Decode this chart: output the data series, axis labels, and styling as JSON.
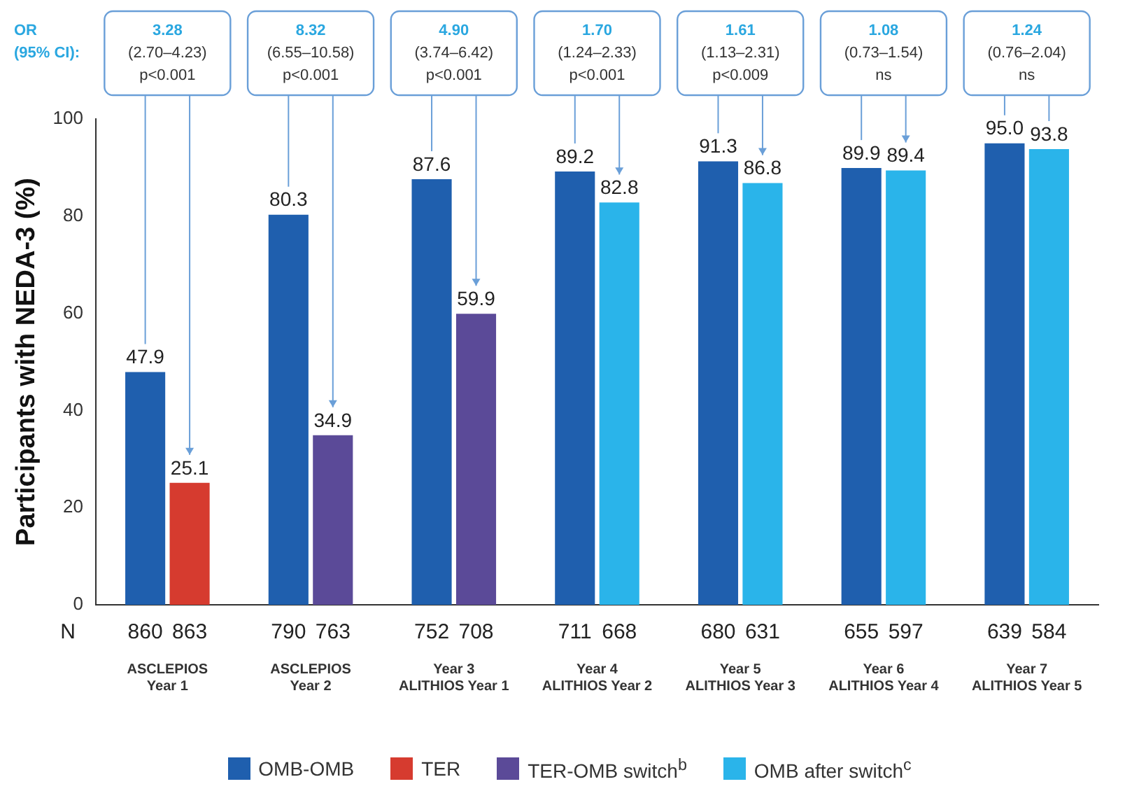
{
  "chart_data": {
    "type": "bar",
    "categories": [
      "ASCLEPIOS\nYear 1",
      "ASCLEPIOS\nYear 2",
      "Year 3\nALITHIOS Year 1",
      "Year 4\nALITHIOS Year 2",
      "Year 5\nALITHIOS Year 3",
      "Year 6\nALITHIOS Year 4",
      "Year 7\nALITHIOS Year 5"
    ],
    "series": [
      {
        "name": "OMB-OMB",
        "color": "#1f5fae",
        "values": [
          47.9,
          80.3,
          87.6,
          89.2,
          91.3,
          89.9,
          95.0
        ],
        "value_labels": [
          "47.9",
          "80.3",
          "87.6",
          "89.2",
          "91.3",
          "89.9",
          "95.0"
        ]
      },
      {
        "name": "TER",
        "color": "#d63b2f",
        "values": [
          25.1,
          null,
          null,
          null,
          null,
          null,
          null
        ],
        "value_labels": [
          "25.1",
          null,
          null,
          null,
          null,
          null,
          null
        ]
      },
      {
        "name": "TER-OMB switch$^{b}$",
        "color": "#5b4a98",
        "values": [
          null,
          34.9,
          59.9,
          null,
          null,
          null,
          null
        ],
        "value_labels": [
          null,
          "34.9",
          "59.9",
          null,
          null,
          null,
          null
        ]
      },
      {
        "name": "OMB after switch$^{c}$",
        "color": "#2ab4ea",
        "values": [
          null,
          null,
          null,
          82.8,
          86.8,
          89.4,
          93.8
        ],
        "value_labels": [
          null,
          null,
          null,
          "82.8",
          "86.8",
          "89.4",
          "93.8"
        ]
      }
    ],
    "ylabel": "Participants with NEDA-3 (%)",
    "ylim": [
      0,
      100
    ],
    "yticks": [
      0,
      20,
      40,
      60,
      80,
      100
    ],
    "grid": false,
    "legend": "bottom",
    "annotations": [
      "OR\n(95% CI):",
      "3.28\n(2.70–4.23)\np<0.001",
      "8.32\n(6.55–10.58)\np<0.001",
      "4.90\n(3.74–6.42)\np<0.001",
      "1.70\n(1.24–2.33)\np<0.001",
      "1.61\n(1.13–2.31)\np<0.009",
      "1.08\n(0.73–1.54)\nns",
      "1.24\n(0.76–2.04)\nns",
      "N",
      "860",
      "863",
      "790",
      "763",
      "752",
      "708",
      "711",
      "668",
      "680",
      "631",
      "655",
      "597",
      "639",
      "584"
    ]
  }
}
